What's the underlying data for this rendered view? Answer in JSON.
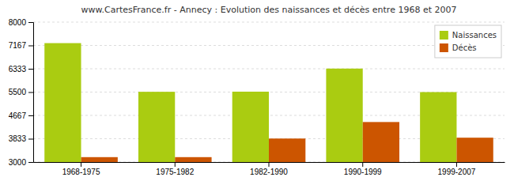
{
  "chart_data": {
    "type": "bar",
    "title": "www.CartesFrance.fr - Annecy : Evolution des naissances et décès entre 1968 et 2007",
    "categories": [
      "1968-1975",
      "1975-1982",
      "1982-1990",
      "1990-1999",
      "1999-2007"
    ],
    "series": [
      {
        "name": "Naissances",
        "color": "#aacc11",
        "values": [
          7250,
          5510,
          5515,
          6340,
          5500
        ]
      },
      {
        "name": "Décès",
        "color": "#cc5500",
        "values": [
          3175,
          3175,
          3840,
          4430,
          3870
        ]
      }
    ],
    "ylim": [
      3000,
      8000
    ],
    "yticks": [
      3000,
      3833,
      4667,
      5500,
      6333,
      7167,
      8000
    ],
    "grid": true,
    "legend": "upper right"
  }
}
